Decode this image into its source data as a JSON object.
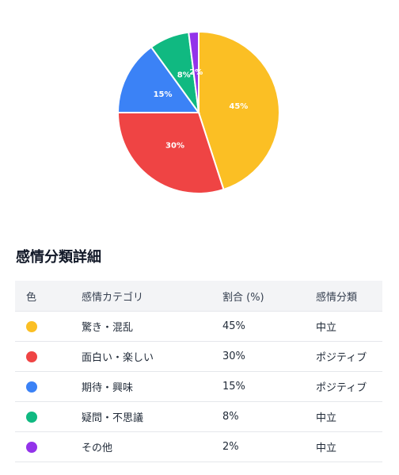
{
  "chart_data": {
    "type": "pie",
    "slices": [
      {
        "label": "45%",
        "value": 45,
        "color": "#fbbf24"
      },
      {
        "label": "30%",
        "value": 30,
        "color": "#ef4444"
      },
      {
        "label": "15%",
        "value": 15,
        "color": "#3b82f6"
      },
      {
        "label": "8%",
        "value": 8,
        "color": "#10b981"
      },
      {
        "label": "2%",
        "value": 2,
        "color": "#9333ea"
      }
    ]
  },
  "section_title": "感情分類詳細",
  "table": {
    "headers": [
      "色",
      "感情カテゴリ",
      "割合 (%)",
      "感情分類"
    ],
    "rows": [
      {
        "color": "#fbbf24",
        "category": "驚き・混乱",
        "percent": "45%",
        "classification": "中立"
      },
      {
        "color": "#ef4444",
        "category": "面白い・楽しい",
        "percent": "30%",
        "classification": "ポジティブ"
      },
      {
        "color": "#3b82f6",
        "category": "期待・興味",
        "percent": "15%",
        "classification": "ポジティブ"
      },
      {
        "color": "#10b981",
        "category": "疑問・不思議",
        "percent": "8%",
        "classification": "中立"
      },
      {
        "color": "#9333ea",
        "category": "その他",
        "percent": "2%",
        "classification": "中立"
      }
    ]
  }
}
